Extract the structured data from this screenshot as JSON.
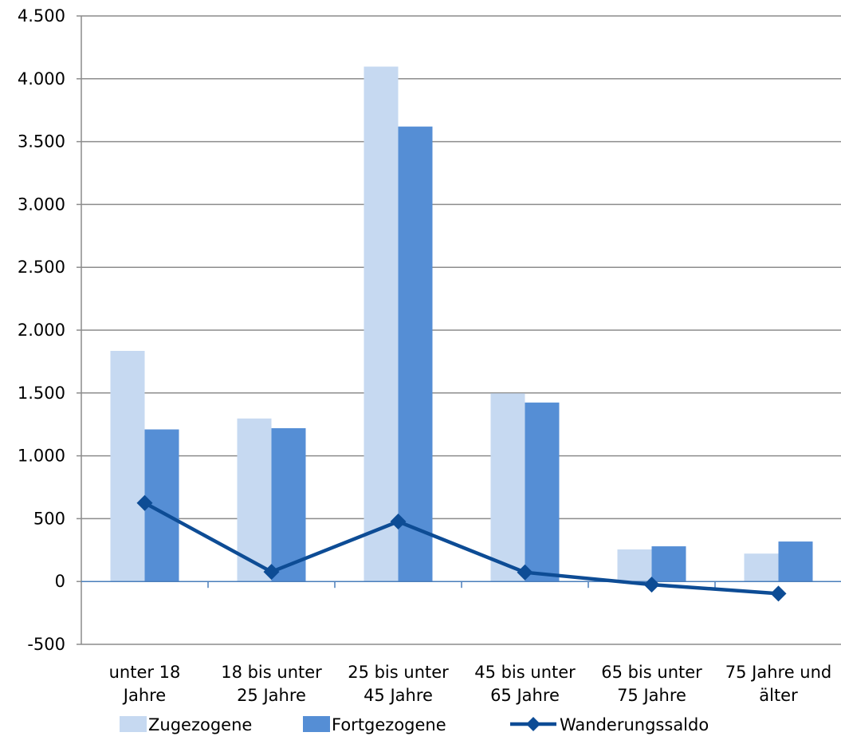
{
  "chart_data": {
    "type": "bar",
    "categories": [
      [
        "unter 18",
        "Jahre"
      ],
      [
        "18 bis unter",
        "25 Jahre"
      ],
      [
        "25 bis unter",
        "45 Jahre"
      ],
      [
        "45 bis unter",
        "65 Jahre"
      ],
      [
        "65 bis unter",
        "75 Jahre"
      ],
      [
        "75 Jahre und",
        "älter"
      ]
    ],
    "series": [
      {
        "name": "Zugezogene",
        "kind": "bar",
        "color": "#c6d9f1",
        "values": [
          1835,
          1297,
          4097,
          1497,
          255,
          222
        ]
      },
      {
        "name": "Fortgezogene",
        "kind": "bar",
        "color": "#558ed5",
        "values": [
          1210,
          1220,
          3620,
          1424,
          280,
          318
        ]
      },
      {
        "name": "Wanderungssaldo",
        "kind": "line",
        "color": "#0d4c95",
        "values": [
          625,
          77,
          477,
          73,
          -25,
          -96
        ]
      }
    ],
    "ylim": [
      -500,
      4500
    ],
    "yticks": [
      -500,
      0,
      500,
      1000,
      1500,
      2000,
      2500,
      3000,
      3500,
      4000,
      4500
    ],
    "ytick_labels": [
      "-500",
      "0",
      "500",
      "1.000",
      "1.500",
      "2.000",
      "2.500",
      "3.000",
      "3.500",
      "4.000",
      "4.500"
    ],
    "title": "",
    "xlabel": "",
    "ylabel": "",
    "grid": true,
    "legend": "bottom"
  }
}
